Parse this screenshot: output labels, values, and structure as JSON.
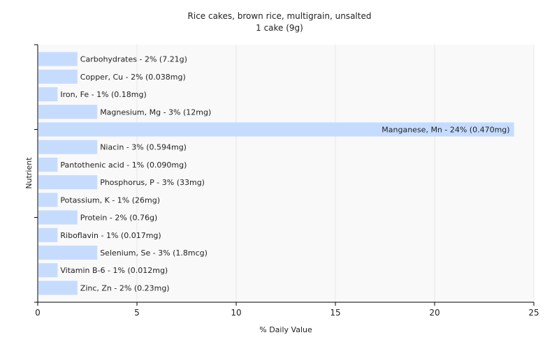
{
  "chart_data": {
    "type": "bar",
    "orientation": "horizontal",
    "title": "Rice cakes, brown rice, multigrain, unsalted",
    "subtitle": "1 cake (9g)",
    "xlabel": "% Daily Value",
    "ylabel": "Nutrient",
    "xlim": [
      0,
      25
    ],
    "xticks": [
      0,
      5,
      10,
      15,
      20,
      25
    ],
    "grid": "vertical",
    "bar_color": "#c6dcff",
    "categories": [
      "Carbohydrates",
      "Copper, Cu",
      "Iron, Fe",
      "Magnesium, Mg",
      "Manganese, Mn",
      "Niacin",
      "Pantothenic acid",
      "Phosphorus, P",
      "Potassium, K",
      "Protein",
      "Riboflavin",
      "Selenium, Se",
      "Vitamin B-6",
      "Zinc, Zn"
    ],
    "values": [
      2,
      2,
      1,
      3,
      24,
      3,
      1,
      3,
      1,
      2,
      1,
      3,
      1,
      2
    ],
    "labels": [
      "Carbohydrates - 2% (7.21g)",
      "Copper, Cu - 2% (0.038mg)",
      "Iron, Fe - 1% (0.18mg)",
      "Magnesium, Mg - 3% (12mg)",
      "Manganese, Mn - 24% (0.470mg)",
      "Niacin - 3% (0.594mg)",
      "Pantothenic acid - 1% (0.090mg)",
      "Phosphorus, P - 3% (33mg)",
      "Potassium, K - 1% (26mg)",
      "Protein - 2% (0.76g)",
      "Riboflavin - 1% (0.017mg)",
      "Selenium, Se - 3% (1.8mcg)",
      "Vitamin B-6 - 1% (0.012mg)",
      "Zinc, Zn - 2% (0.23mg)"
    ]
  }
}
